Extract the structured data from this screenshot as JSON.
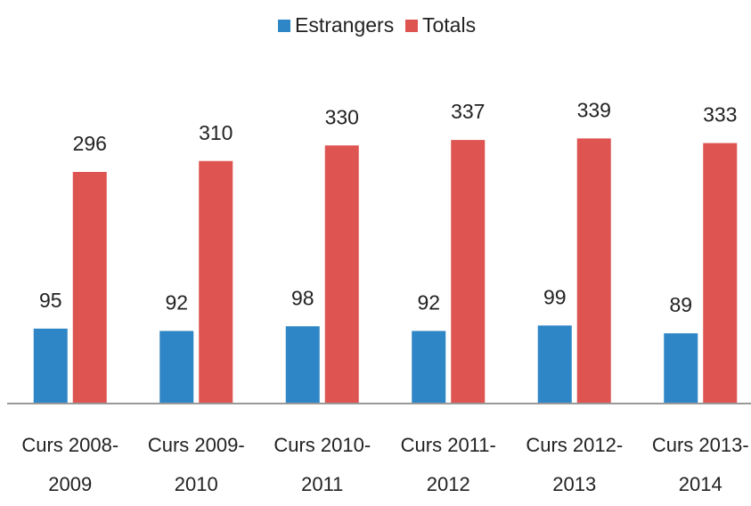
{
  "chart_data": {
    "type": "bar",
    "categories": [
      "Curs 2008-\n2009",
      "Curs 2009-\n2010",
      "Curs 2010-\n2011",
      "Curs 2011-\n2012",
      "Curs 2012-\n2013",
      "Curs 2013-\n2014"
    ],
    "series": [
      {
        "name": "Estrangers",
        "color": "#2f86c6",
        "values": [
          95,
          92,
          98,
          92,
          99,
          89
        ]
      },
      {
        "name": "Totals",
        "color": "#de5450",
        "values": [
          296,
          310,
          330,
          337,
          339,
          333
        ]
      }
    ],
    "ylim": [
      0,
      400
    ],
    "legend": "top"
  }
}
